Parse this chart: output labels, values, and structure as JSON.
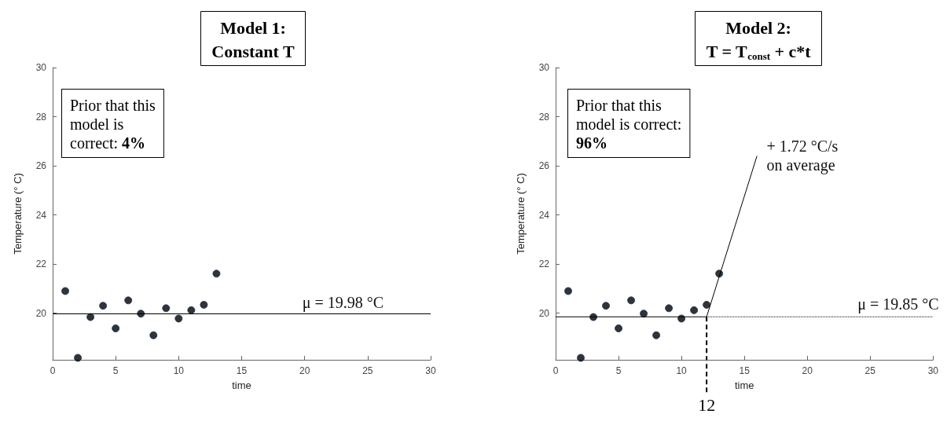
{
  "chart_data": [
    {
      "type": "scatter",
      "title": "Model 1:\nConstant T",
      "xlabel": "time",
      "ylabel": "Temperature (° C)",
      "x": [
        1,
        2,
        3,
        4,
        5,
        6,
        7,
        8,
        9,
        10,
        11,
        12,
        13
      ],
      "series": [
        {
          "color": "#000000",
          "values": [
            20.9,
            18.18,
            19.84,
            20.3,
            19.38,
            20.52,
            19.98,
            19.1,
            20.2,
            19.78,
            20.12,
            20.34,
            21.61
          ]
        }
      ],
      "xlim": [
        0,
        30
      ],
      "xticks": [
        0,
        5,
        10,
        15,
        20,
        25,
        30
      ],
      "ylim": [
        18.1,
        30
      ],
      "yticks": [
        20,
        22,
        24,
        26,
        28,
        30
      ],
      "ref_lines": [
        {
          "axis": "y",
          "value": 19.98,
          "label": "μ = 19.98 °C",
          "color": "#000000"
        }
      ],
      "annotations": [
        "Prior that this\nmodel is\ncorrect: 4%"
      ],
      "marker": "circle",
      "grid": false
    },
    {
      "type": "scatter",
      "title": "Model 2:\nT = T$_{const}$ + c*t",
      "xlabel": "time",
      "ylabel": "Temperature (° C)",
      "x": [
        1,
        2,
        3,
        4,
        5,
        6,
        7,
        8,
        9,
        10,
        11,
        12,
        13
      ],
      "series": [
        {
          "color": "#000000",
          "marker": "circle",
          "values": [
            20.9,
            18.18,
            19.84,
            20.3,
            19.38,
            20.52,
            19.98,
            19.1,
            20.2,
            19.78,
            20.12,
            20.34,
            21.61
          ]
        },
        {
          "type": "line",
          "color": "#000000",
          "line_style": "solid",
          "x": [
            0,
            12
          ],
          "values": [
            19.85,
            19.85
          ]
        },
        {
          "type": "line",
          "color": "#000000",
          "line_style": "dotted",
          "x": [
            12,
            30
          ],
          "values": [
            19.85,
            19.85
          ]
        },
        {
          "type": "line",
          "color": "#000000",
          "line_style": "solid",
          "x": [
            12,
            16
          ],
          "values": [
            19.85,
            26.4
          ]
        }
      ],
      "xlim": [
        0,
        30
      ],
      "xticks": [
        0,
        5,
        10,
        15,
        20,
        25,
        30
      ],
      "ylim": [
        18.1,
        30
      ],
      "yticks": [
        20,
        22,
        24,
        26,
        28,
        30
      ],
      "ref_lines": [
        {
          "axis": "x",
          "value": 12,
          "label": "12",
          "color": "#000000",
          "line_style": "dashed"
        }
      ],
      "annotations": [
        "Prior that this\nmodel is correct:\n96%",
        "+ 1.72 °C/s\non average",
        {
          "text": "μ = 19.85 °C",
          "x": 24,
          "y": 19.85
        }
      ],
      "grid": false
    }
  ]
}
